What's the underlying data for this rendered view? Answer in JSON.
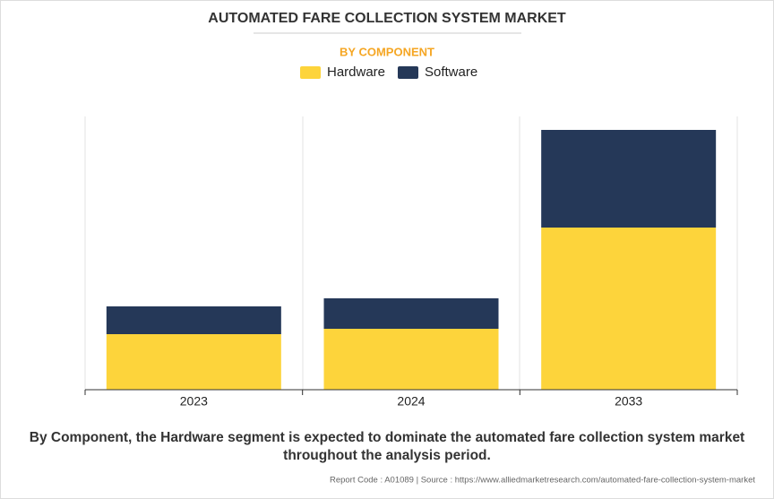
{
  "chart_data": {
    "type": "stacked_bar",
    "title": "AUTOMATED FARE COLLECTION SYSTEM MARKET",
    "subtitle": "BY COMPONENT",
    "categories": [
      "2023",
      "2024",
      "2033"
    ],
    "series": [
      {
        "name": "Hardware",
        "color": "#fdd43b",
        "values": [
          62,
          68,
          181
        ]
      },
      {
        "name": "Software",
        "color": "#253858",
        "values": [
          31,
          34,
          109
        ]
      }
    ],
    "ylim": [
      0,
      305
    ],
    "caption": "By Component, the Hardware segment is expected to dominate the automated fare collection system market throughout the analysis period.",
    "source": "Report Code : A01089  |  Source : https://www.alliedmarketresearch.com/automated-fare-collection-system-market"
  }
}
